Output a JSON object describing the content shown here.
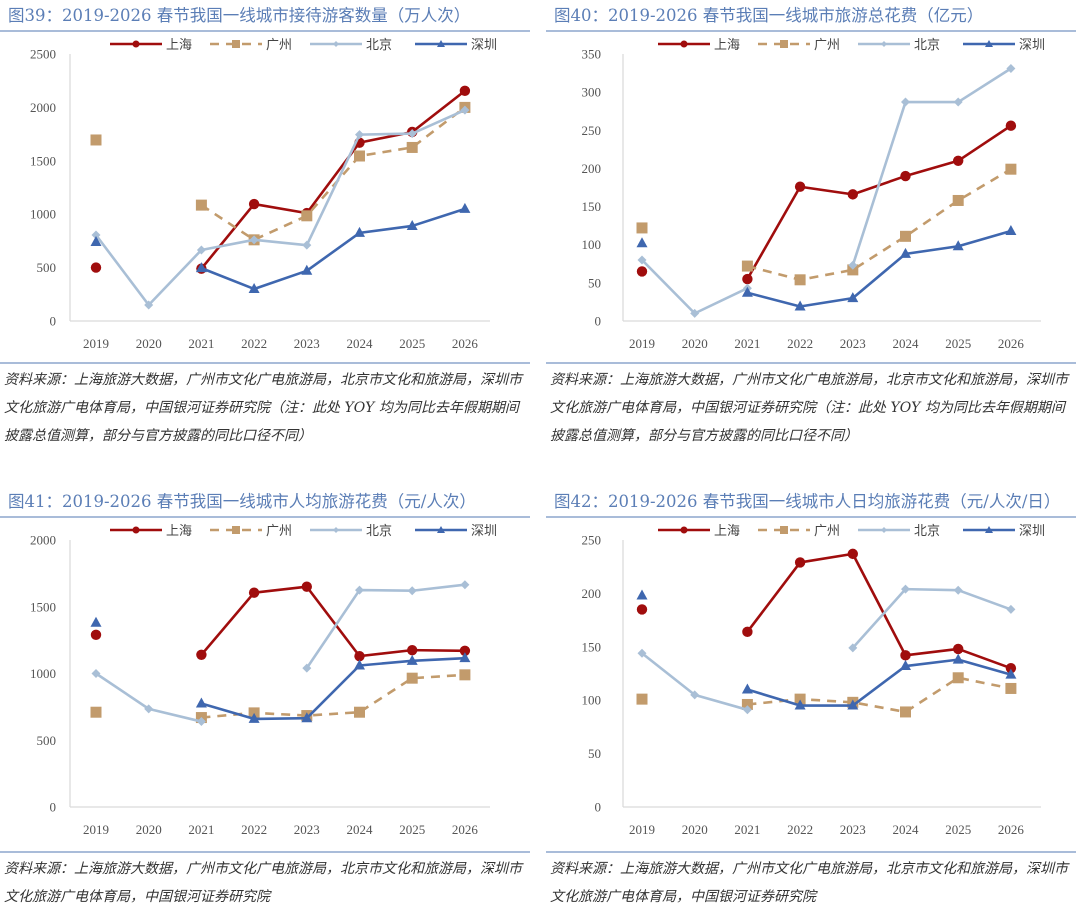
{
  "legend": [
    "上海",
    "广州",
    "北京",
    "深圳"
  ],
  "colors": {
    "上海": "#A00D0D",
    "广州": "#C29B6C",
    "北京": "#A9BFD6",
    "深圳": "#3F67AF",
    "title": "#5B7EB6"
  },
  "chart_data": [
    {
      "id": "fig39",
      "type": "line",
      "title": "图39：2019-2026 春节我国一线城市接待游客数量（万人次）",
      "xlabel": "",
      "ylabel": "",
      "categories": [
        "2019",
        "2020",
        "2021",
        "2022",
        "2023",
        "2024",
        "2025",
        "2026"
      ],
      "yticks": [
        0,
        500,
        1000,
        1500,
        2000,
        2500
      ],
      "ylim": [
        0,
        2500
      ],
      "grid": false,
      "legend_position": "top",
      "series": [
        {
          "name": "上海",
          "values": [
            500,
            null,
            490,
            1095,
            1010,
            1670,
            1770,
            2155
          ]
        },
        {
          "name": "广州",
          "values": [
            1695,
            null,
            1085,
            760,
            985,
            1545,
            1625,
            2000
          ]
        },
        {
          "name": "北京",
          "values": [
            805,
            150,
            665,
            760,
            710,
            1745,
            1755,
            1975
          ]
        },
        {
          "name": "深圳",
          "values": [
            740,
            null,
            495,
            300,
            470,
            825,
            890,
            1050
          ]
        }
      ],
      "source": "资料来源：上海旅游大数据，广州市文化广电旅游局，北京市文化和旅游局，深圳市文化旅游广电体育局，中国银河证券研究院（注：此处 YOY 均为同比去年假期期间披露总值测算，部分与官方披露的同比口径不同）"
    },
    {
      "id": "fig40",
      "type": "line",
      "title": "图40：2019-2026 春节我国一线城市旅游总花费（亿元）",
      "xlabel": "",
      "ylabel": "",
      "categories": [
        "2019",
        "2020",
        "2021",
        "2022",
        "2023",
        "2024",
        "2025",
        "2026"
      ],
      "yticks": [
        0,
        50,
        100,
        150,
        200,
        250,
        300,
        350
      ],
      "ylim": [
        0,
        350
      ],
      "grid": false,
      "legend_position": "top",
      "series": [
        {
          "name": "上海",
          "values": [
            65,
            null,
            55,
            176,
            166,
            190,
            210,
            256
          ]
        },
        {
          "name": "广州",
          "values": [
            122,
            null,
            72,
            54,
            67,
            111,
            158,
            199
          ]
        },
        {
          "name": "北京",
          "values": [
            80,
            10,
            43,
            null,
            73,
            287,
            287,
            331
          ]
        },
        {
          "name": "深圳",
          "values": [
            102,
            null,
            37,
            19,
            30,
            88,
            98,
            118
          ]
        }
      ],
      "source": "资料来源：上海旅游大数据，广州市文化广电旅游局，北京市文化和旅游局，深圳市文化旅游广电体育局，中国银河证券研究院（注：此处 YOY 均为同比去年假期期间披露总值测算，部分与官方披露的同比口径不同）"
    },
    {
      "id": "fig41",
      "type": "line",
      "title": "图41：2019-2026 春节我国一线城市人均旅游花费（元/人次）",
      "xlabel": "",
      "ylabel": "",
      "categories": [
        "2019",
        "2020",
        "2021",
        "2022",
        "2023",
        "2024",
        "2025",
        "2026"
      ],
      "yticks": [
        0,
        500,
        1000,
        1500,
        2000
      ],
      "ylim": [
        0,
        2000
      ],
      "grid": false,
      "legend_position": "top",
      "series": [
        {
          "name": "上海",
          "values": [
            1290,
            null,
            1140,
            1605,
            1650,
            1130,
            1175,
            1170
          ]
        },
        {
          "name": "广州",
          "values": [
            710,
            null,
            670,
            705,
            685,
            710,
            965,
            990
          ]
        },
        {
          "name": "北京",
          "values": [
            1000,
            735,
            640,
            null,
            1040,
            1625,
            1620,
            1665
          ]
        },
        {
          "name": "深圳",
          "values": [
            1380,
            null,
            775,
            660,
            665,
            1060,
            1095,
            1115
          ]
        }
      ],
      "source": "资料来源：上海旅游大数据，广州市文化广电旅游局，北京市文化和旅游局，深圳市文化旅游广电体育局，中国银河证券研究院"
    },
    {
      "id": "fig42",
      "type": "line",
      "title": "图42：2019-2026 春节我国一线城市人日均旅游花费（元/人次/日）",
      "xlabel": "",
      "ylabel": "",
      "categories": [
        "2019",
        "2020",
        "2021",
        "2022",
        "2023",
        "2024",
        "2025",
        "2026"
      ],
      "yticks": [
        0,
        50,
        100,
        150,
        200,
        250
      ],
      "ylim": [
        0,
        250
      ],
      "grid": false,
      "legend_position": "top",
      "series": [
        {
          "name": "上海",
          "values": [
            185,
            null,
            164,
            229,
            237,
            142,
            148,
            130
          ]
        },
        {
          "name": "广州",
          "values": [
            101,
            null,
            96,
            101,
            98,
            89,
            121,
            111
          ]
        },
        {
          "name": "北京",
          "values": [
            144,
            105,
            91,
            null,
            149,
            204,
            203,
            185
          ]
        },
        {
          "name": "深圳",
          "values": [
            198,
            null,
            110,
            95,
            95,
            132,
            138,
            124
          ]
        }
      ],
      "source": "资料来源：上海旅游大数据，广州市文化广电旅游局，北京市文化和旅游局，深圳市文化旅游广电体育局，中国银河证券研究院"
    }
  ]
}
